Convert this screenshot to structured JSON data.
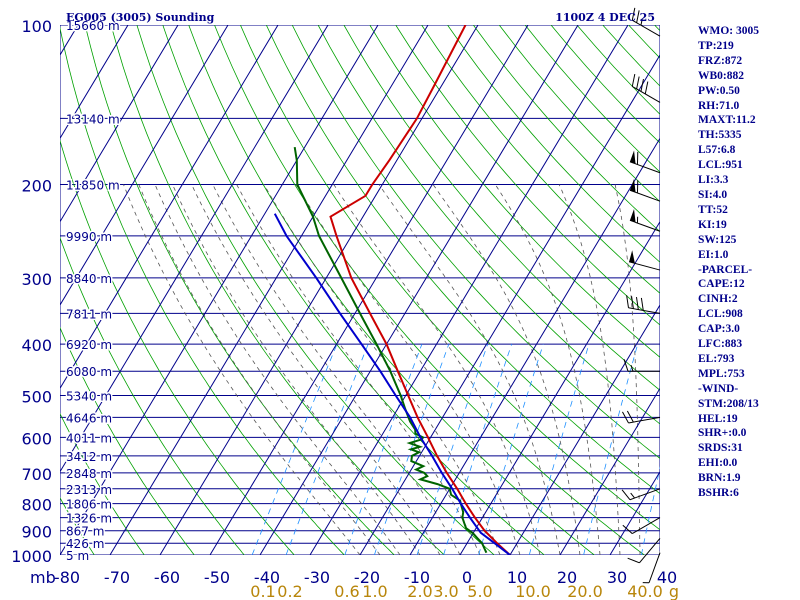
{
  "header": {
    "station_title": "EG005 (3005) Sounding",
    "time_label": "1100Z  4 DEC 25"
  },
  "colors": {
    "grid": "#00008b",
    "isotherm": "#00008b",
    "dry_adiabat": "#00a000",
    "moist_adiabat": "#555555",
    "mixing_ratio": "#1e90ff",
    "temperature": "#cc0000",
    "dewpoint": "#006400",
    "parcel": "#0000cd",
    "ratio_labels": "#b8860b"
  },
  "indices": [
    "WMO: 3005",
    "TP:219",
    "FRZ:872",
    "WB0:882",
    "PW:0.50",
    "RH:71.0",
    "MAXT:11.2",
    "TH:5335",
    "L57:6.8",
    "LCL:951",
    "LI:3.3",
    "SI:4.0",
    "TT:52",
    "KI:19",
    "SW:125",
    "EI:1.0",
    "-PARCEL-",
    "CAPE:12",
    "CINH:2",
    "LCL:908",
    "CAP:3.0",
    "LFC:883",
    "EL:793",
    "MPL:753",
    "-WIND-",
    "STM:208/13",
    "HEL:19",
    "SHR+:0.0",
    "SRDS:31",
    "EHI:0.0",
    "BRN:1.9",
    "BSHR:6"
  ],
  "chart_data": {
    "type": "line",
    "title": "EG005 (3005) Sounding",
    "x_unit_label": "mb",
    "y_axis": {
      "scale": "log-pressure",
      "range_hpa": [
        1000,
        100
      ],
      "pressure_labels": [
        100,
        200,
        300,
        400,
        500,
        600,
        700,
        800,
        900,
        1000
      ]
    },
    "x_axis": {
      "range_c": [
        -80,
        40
      ],
      "temperature_labels": [
        "-80",
        "-70",
        "-60",
        "-50",
        "-40",
        "-30",
        "-20",
        "-10",
        "0",
        "10",
        "20",
        "30",
        "40"
      ]
    },
    "height_labels": [
      {
        "p": 100,
        "text": "15660 m"
      },
      {
        "p": 150,
        "text": "13140 m"
      },
      {
        "p": 200,
        "text": "11850 m"
      },
      {
        "p": 250,
        "text": "9990 m"
      },
      {
        "p": 300,
        "text": "8840 m"
      },
      {
        "p": 350,
        "text": "7811 m"
      },
      {
        "p": 400,
        "text": "6920 m"
      },
      {
        "p": 450,
        "text": "6080 m"
      },
      {
        "p": 500,
        "text": "5340 m"
      },
      {
        "p": 550,
        "text": "4646 m"
      },
      {
        "p": 600,
        "text": "4011 m"
      },
      {
        "p": 650,
        "text": "3412 m"
      },
      {
        "p": 700,
        "text": "2848 m"
      },
      {
        "p": 750,
        "text": "2313 m"
      },
      {
        "p": 800,
        "text": "1806 m"
      },
      {
        "p": 850,
        "text": "1326 m"
      },
      {
        "p": 900,
        "text": "867 m"
      },
      {
        "p": 950,
        "text": "426 m"
      },
      {
        "p": 1000,
        "text": "5 m"
      }
    ],
    "mixing_ratio_labels": [
      "0.1",
      "0.2",
      "0.6",
      "1.0",
      "2.0",
      "3.0",
      "5.0",
      "10.0",
      "20.0",
      "40.0",
      "g"
    ],
    "series": [
      {
        "key": "temperature",
        "points": [
          [
            1000,
            10.0
          ],
          [
            950,
            6.0
          ],
          [
            900,
            2.0
          ],
          [
            850,
            -1.5
          ],
          [
            800,
            -5.0
          ],
          [
            750,
            -8.5
          ],
          [
            700,
            -12.5
          ],
          [
            650,
            -16.5
          ],
          [
            600,
            -20.5
          ],
          [
            550,
            -25.0
          ],
          [
            500,
            -29.5
          ],
          [
            450,
            -34.5
          ],
          [
            400,
            -40.0
          ],
          [
            350,
            -47.0
          ],
          [
            300,
            -55.0
          ],
          [
            250,
            -63.0
          ],
          [
            230,
            -66.5
          ],
          [
            210,
            -62.0
          ],
          [
            200,
            -62.0
          ],
          [
            180,
            -61.5
          ],
          [
            150,
            -61.0
          ],
          [
            130,
            -61.5
          ],
          [
            100,
            -62.5
          ]
        ]
      },
      {
        "key": "dewpoint",
        "points": [
          [
            990,
            5.0
          ],
          [
            970,
            4.0
          ],
          [
            950,
            3.0
          ],
          [
            930,
            1.5
          ],
          [
            910,
            0.0
          ],
          [
            890,
            -2.0
          ],
          [
            870,
            -3.0
          ],
          [
            850,
            -4.0
          ],
          [
            830,
            -4.5
          ],
          [
            810,
            -5.5
          ],
          [
            790,
            -6.5
          ],
          [
            770,
            -9.0
          ],
          [
            750,
            -10.0
          ],
          [
            735,
            -13.0
          ],
          [
            720,
            -17.0
          ],
          [
            710,
            -16.0
          ],
          [
            700,
            -17.0
          ],
          [
            690,
            -19.0
          ],
          [
            680,
            -18.0
          ],
          [
            665,
            -21.0
          ],
          [
            650,
            -21.5
          ],
          [
            640,
            -20.5
          ],
          [
            632,
            -22.5
          ],
          [
            625,
            -21.0
          ],
          [
            615,
            -23.5
          ],
          [
            605,
            -21.5
          ],
          [
            600,
            -21.5
          ],
          [
            590,
            -23.5
          ],
          [
            580,
            -24.0
          ],
          [
            560,
            -26.0
          ],
          [
            530,
            -28.5
          ],
          [
            500,
            -31.0
          ],
          [
            450,
            -36.0
          ],
          [
            400,
            -42.0
          ],
          [
            350,
            -49.0
          ],
          [
            300,
            -57.0
          ],
          [
            250,
            -66.5
          ],
          [
            230,
            -70.0
          ],
          [
            200,
            -77.0
          ],
          [
            180,
            -80.0
          ],
          [
            170,
            -82.0
          ]
        ]
      },
      {
        "key": "parcel",
        "points": [
          [
            1000,
            10.0
          ],
          [
            950,
            5.5
          ],
          [
            908,
            1.5
          ],
          [
            850,
            -2.5
          ],
          [
            800,
            -6.0
          ],
          [
            750,
            -9.5
          ],
          [
            700,
            -13.5
          ],
          [
            650,
            -17.5
          ],
          [
            600,
            -22.0
          ],
          [
            550,
            -26.5
          ],
          [
            500,
            -32.0
          ],
          [
            450,
            -38.0
          ],
          [
            400,
            -45.0
          ],
          [
            350,
            -53.0
          ],
          [
            300,
            -62.0
          ],
          [
            250,
            -73.0
          ],
          [
            227,
            -78.0
          ]
        ]
      }
    ],
    "wind_barbs": [
      {
        "p": 105,
        "dir": 300,
        "kt": 25
      },
      {
        "p": 140,
        "dir": 300,
        "kt": 40
      },
      {
        "p": 190,
        "dir": 290,
        "kt": 60
      },
      {
        "p": 215,
        "dir": 290,
        "kt": 60
      },
      {
        "p": 245,
        "dir": 290,
        "kt": 55
      },
      {
        "p": 290,
        "dir": 285,
        "kt": 50
      },
      {
        "p": 350,
        "dir": 280,
        "kt": 40
      },
      {
        "p": 450,
        "dir": 270,
        "kt": 15
      },
      {
        "p": 550,
        "dir": 260,
        "kt": 20
      },
      {
        "p": 750,
        "dir": 250,
        "kt": 15
      },
      {
        "p": 850,
        "dir": 240,
        "kt": 10
      },
      {
        "p": 930,
        "dir": 220,
        "kt": 10
      },
      {
        "p": 990,
        "dir": 200,
        "kt": 5
      }
    ]
  }
}
